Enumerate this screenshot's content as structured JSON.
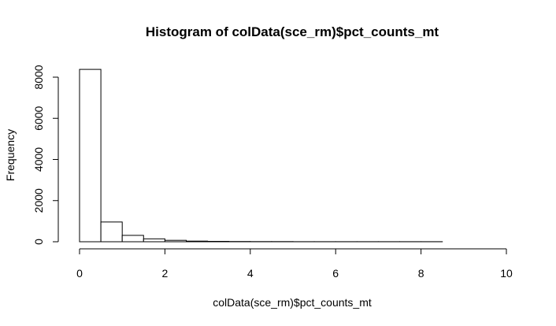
{
  "chart_data": {
    "type": "bar",
    "title": "Histogram of colData(sce_rm)$pct_counts_mt",
    "xlabel": "colData(sce_rm)$pct_counts_mt",
    "ylabel": "Frequency",
    "xlim": [
      0,
      10
    ],
    "ylim": [
      0,
      8400
    ],
    "x_ticks": [
      "0",
      "2",
      "4",
      "6",
      "8",
      "10"
    ],
    "y_ticks": [
      "0",
      "2000",
      "4000",
      "6000",
      "8000"
    ],
    "bin_width": 0.5,
    "bin_starts": [
      0,
      0.5,
      1,
      1.5,
      2,
      2.5,
      3,
      3.5,
      4,
      4.5,
      5,
      5.5,
      6,
      6.5,
      7,
      7.5,
      8,
      8.5,
      9,
      9.5
    ],
    "values": [
      8380,
      960,
      310,
      140,
      70,
      30,
      20,
      12,
      8,
      6,
      5,
      4,
      3,
      3,
      2,
      2,
      2,
      1,
      1,
      1
    ],
    "grid": false,
    "legend": "none"
  }
}
